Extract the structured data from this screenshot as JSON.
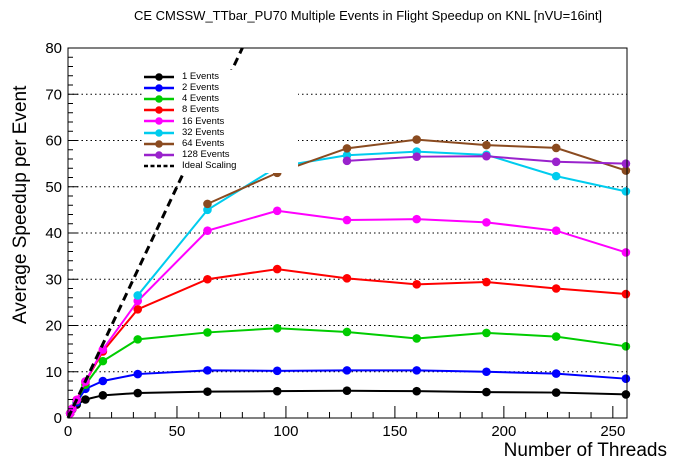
{
  "title": "CE CMSSW_TTbar_PU70 Multiple Events in Flight Speedup on KNL [nVU=16int]",
  "chart_data": {
    "type": "line",
    "title": "CE CMSSW_TTbar_PU70 Multiple Events in Flight Speedup on KNL [nVU=16int]",
    "xlabel": "Number of Threads",
    "ylabel": "Average Speedup per Event",
    "xlim": [
      0,
      256.5
    ],
    "ylim": [
      0,
      80
    ],
    "x_ticks": [
      0,
      50,
      100,
      150,
      200,
      250
    ],
    "y_ticks": [
      0,
      10,
      20,
      30,
      40,
      50,
      60,
      70,
      80
    ],
    "x_minor_step": 10,
    "y_minor_step": 2,
    "grid": "horizontal-dotted",
    "legend_position": "upper-left-inside",
    "frame_color": "#000000",
    "series": [
      {
        "name": "1 Events",
        "color": "#000000",
        "marker": "circle",
        "x": [
          1,
          2,
          4,
          8,
          16,
          32,
          64,
          96,
          128,
          160,
          192,
          224,
          256
        ],
        "y": [
          1.0,
          1.9,
          2.9,
          4.0,
          4.9,
          5.4,
          5.7,
          5.8,
          5.9,
          5.8,
          5.6,
          5.5,
          5.1
        ]
      },
      {
        "name": "2 Events",
        "color": "#0000ff",
        "marker": "circle",
        "x": [
          1,
          2,
          4,
          8,
          16,
          32,
          64,
          96,
          128,
          160,
          192,
          224,
          256
        ],
        "y": [
          1.0,
          2.0,
          3.4,
          6.3,
          8.0,
          9.5,
          10.3,
          10.2,
          10.3,
          10.3,
          10.0,
          9.6,
          8.5
        ]
      },
      {
        "name": "4 Events",
        "color": "#00cc00",
        "marker": "circle",
        "x": [
          1,
          2,
          4,
          8,
          16,
          32,
          64,
          96,
          128,
          160,
          192,
          224,
          256
        ],
        "y": [
          1.0,
          2.0,
          3.8,
          7.2,
          12.3,
          17.0,
          18.5,
          19.4,
          18.6,
          17.2,
          18.4,
          17.6,
          15.5
        ]
      },
      {
        "name": "8 Events",
        "color": "#ff0000",
        "marker": "circle",
        "x": [
          1,
          2,
          4,
          8,
          16,
          32,
          64,
          96,
          128,
          160,
          192,
          224,
          256
        ],
        "y": [
          1.0,
          2.0,
          3.9,
          7.8,
          14.4,
          23.5,
          30.0,
          32.2,
          30.2,
          28.9,
          29.4,
          28.0,
          26.8
        ]
      },
      {
        "name": "16 Events",
        "color": "#ff00ff",
        "marker": "circle",
        "x": [
          1,
          2,
          4,
          8,
          16,
          32,
          64,
          96,
          128,
          160,
          192,
          224,
          256
        ],
        "y": [
          1.0,
          2.0,
          3.9,
          7.9,
          14.8,
          25.3,
          40.5,
          44.8,
          42.8,
          43.0,
          42.3,
          40.5,
          35.8
        ]
      },
      {
        "name": "32 Events",
        "color": "#00ccee",
        "marker": "circle",
        "x": [
          32,
          64,
          96,
          128,
          160,
          192,
          224,
          256
        ],
        "y": [
          26.5,
          45.0,
          54.3,
          56.8,
          57.6,
          56.9,
          52.3,
          49.0
        ]
      },
      {
        "name": "64 Events",
        "color": "#8a4b20",
        "marker": "circle",
        "x": [
          64,
          96,
          128,
          160,
          192,
          224,
          256
        ],
        "y": [
          46.3,
          53.0,
          58.3,
          60.2,
          59.0,
          58.4,
          53.5
        ]
      },
      {
        "name": "128 Events",
        "color": "#9922cc",
        "marker": "circle",
        "x": [
          128,
          160,
          192,
          224,
          256
        ],
        "y": [
          55.6,
          56.5,
          56.6,
          55.4,
          55.0
        ]
      },
      {
        "name": "Ideal Scaling",
        "color": "#000000",
        "marker": "none",
        "style": "dashed",
        "x": [
          0,
          80
        ],
        "y": [
          0,
          80
        ]
      }
    ]
  }
}
